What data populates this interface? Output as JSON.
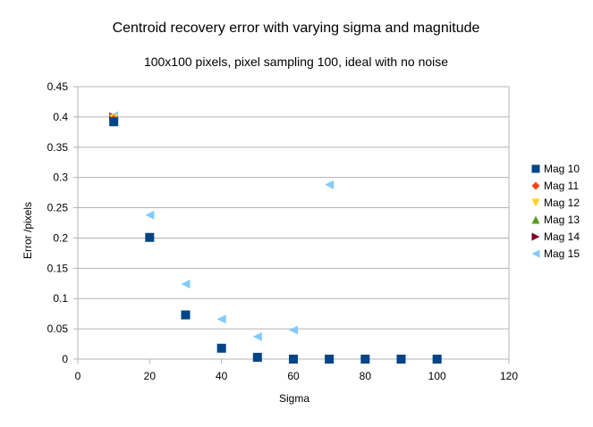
{
  "chart_data": {
    "type": "scatter",
    "title": "Centroid recovery error with varying sigma and magnitude",
    "subtitle": "100x100 pixels, pixel sampling 100, ideal with no noise",
    "xlabel": "Sigma",
    "ylabel": "Error /pixels",
    "xlim": [
      0,
      120
    ],
    "ylim": [
      0,
      0.45
    ],
    "x_ticks": [
      "0",
      "20",
      "40",
      "60",
      "80",
      "100",
      "120"
    ],
    "y_ticks": [
      "0",
      "0.05",
      "0.1",
      "0.15",
      "0.2",
      "0.25",
      "0.3",
      "0.35",
      "0.4",
      "0.45"
    ],
    "grid": "horizontal",
    "legend_position": "right",
    "series": [
      {
        "name": "Mag 10",
        "marker": "square",
        "color": "#004586",
        "x": [
          10,
          20,
          30,
          40,
          50,
          60,
          70,
          80,
          90,
          100
        ],
        "y": [
          0.392,
          0.201,
          0.073,
          0.018,
          0.003,
          0.0,
          0.0,
          0.0,
          0.0,
          0.0
        ]
      },
      {
        "name": "Mag 11",
        "marker": "diamond",
        "color": "#ff420e",
        "x": [
          10
        ],
        "y": [
          0.396
        ]
      },
      {
        "name": "Mag 12",
        "marker": "triangle-down",
        "color": "#ffd320",
        "x": [
          10
        ],
        "y": [
          0.397
        ]
      },
      {
        "name": "Mag 13",
        "marker": "triangle-up",
        "color": "#579d1c",
        "x": [
          10
        ],
        "y": [
          0.398
        ]
      },
      {
        "name": "Mag 14",
        "marker": "triangle-right",
        "color": "#7e0021",
        "x": [
          10
        ],
        "y": [
          0.4
        ]
      },
      {
        "name": "Mag 15",
        "marker": "triangle-left",
        "color": "#83caff",
        "x": [
          10,
          20,
          30,
          40,
          50,
          60,
          70
        ],
        "y": [
          0.402,
          0.238,
          0.124,
          0.066,
          0.037,
          0.048,
          0.288
        ]
      }
    ]
  }
}
